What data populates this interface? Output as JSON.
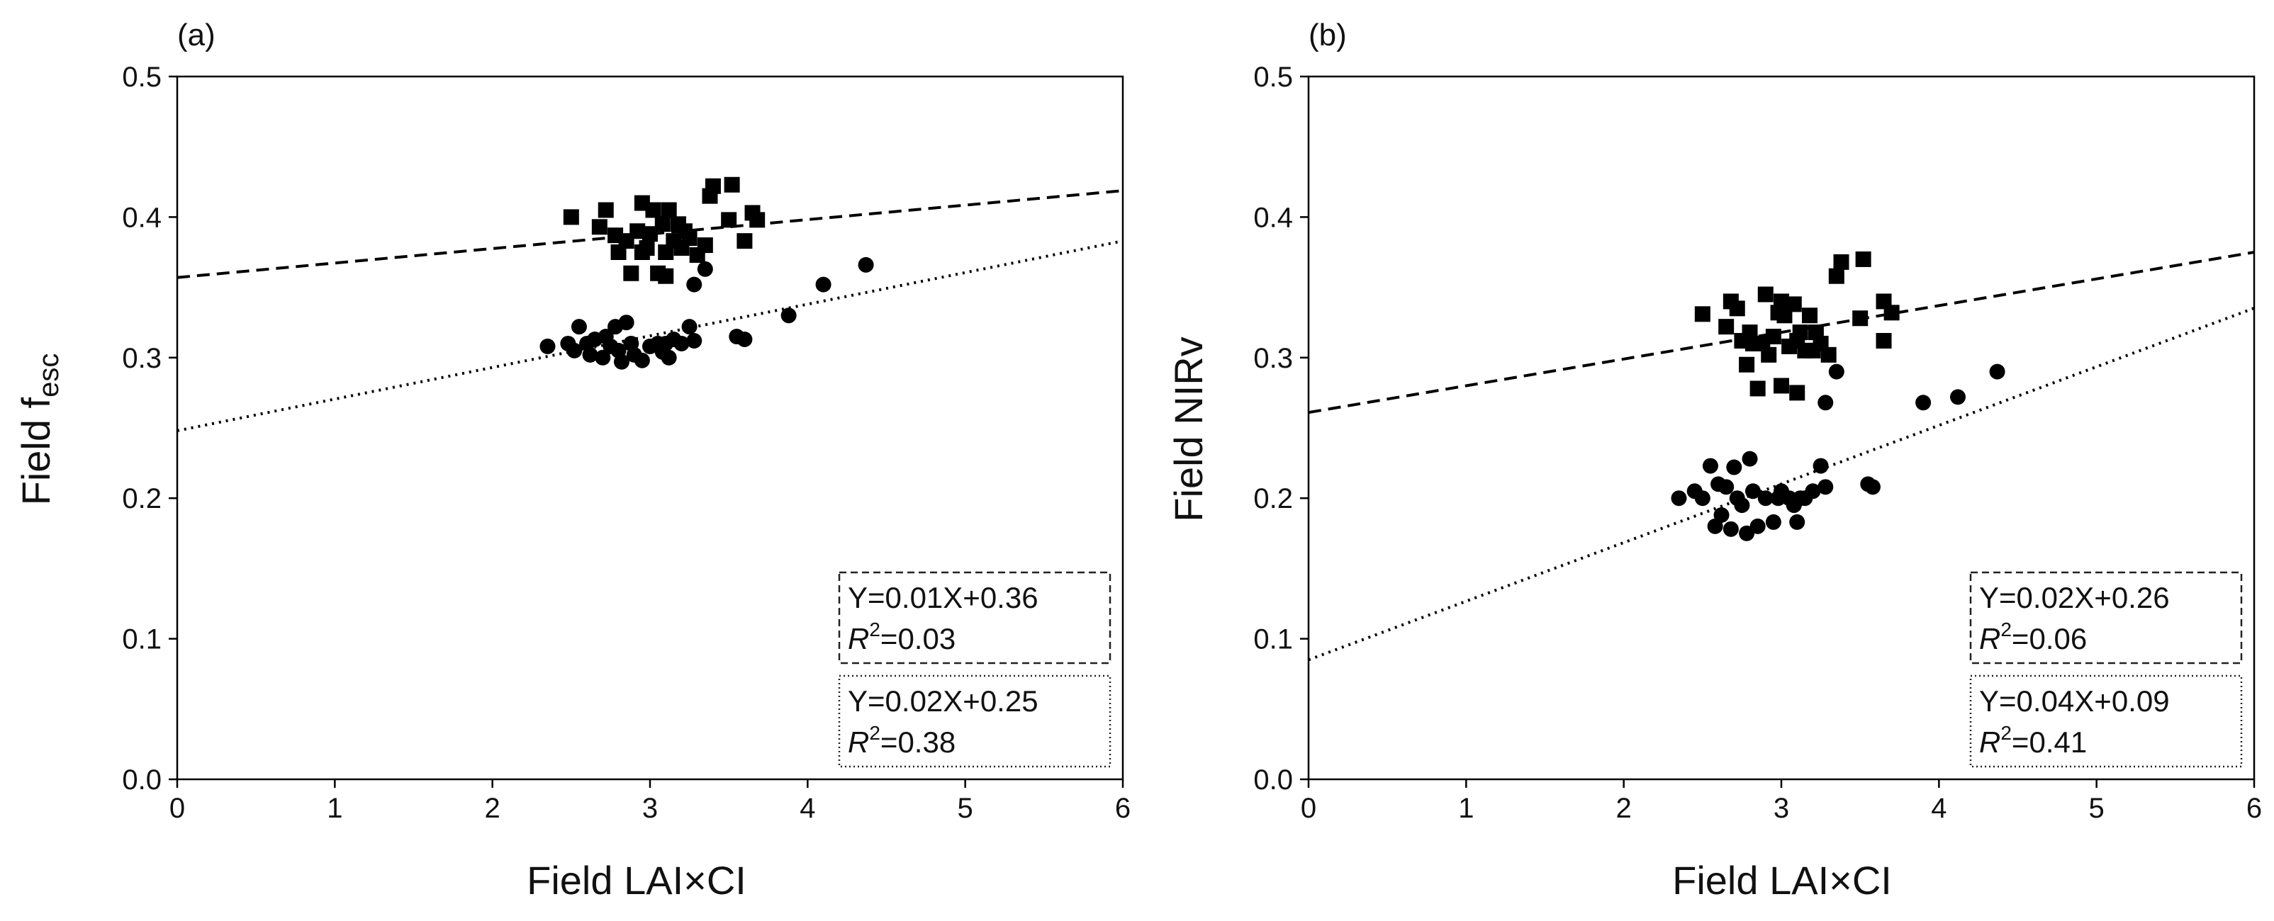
{
  "chart_data": [
    {
      "type": "scatter",
      "panel_label": "(a)",
      "xlabel": "Field LAI×CI",
      "ylabel": "Field f",
      "ylabel_sub": "esc",
      "xlim": [
        0,
        6
      ],
      "ylim": [
        0.0,
        0.5
      ],
      "xticks": [
        "0",
        "1",
        "2",
        "3",
        "4",
        "5",
        "6"
      ],
      "yticks": [
        "0.0",
        "0.1",
        "0.2",
        "0.3",
        "0.4",
        "0.5"
      ],
      "series": [
        {
          "name": "squares",
          "marker": "square",
          "points": [
            [
              2.5,
              0.4
            ],
            [
              2.68,
              0.393
            ],
            [
              2.72,
              0.405
            ],
            [
              2.78,
              0.387
            ],
            [
              2.8,
              0.375
            ],
            [
              2.85,
              0.383
            ],
            [
              2.88,
              0.36
            ],
            [
              2.92,
              0.39
            ],
            [
              2.95,
              0.41
            ],
            [
              2.98,
              0.378
            ],
            [
              3.0,
              0.388
            ],
            [
              3.02,
              0.405
            ],
            [
              3.05,
              0.36
            ],
            [
              3.08,
              0.395
            ],
            [
              3.1,
              0.375
            ],
            [
              3.12,
              0.405
            ],
            [
              3.15,
              0.383
            ],
            [
              3.18,
              0.395
            ],
            [
              3.2,
              0.378
            ],
            [
              3.22,
              0.39
            ],
            [
              3.25,
              0.385
            ],
            [
              3.3,
              0.373
            ],
            [
              3.35,
              0.38
            ],
            [
              3.38,
              0.415
            ],
            [
              3.4,
              0.422
            ],
            [
              3.5,
              0.398
            ],
            [
              3.52,
              0.423
            ],
            [
              3.6,
              0.383
            ],
            [
              3.65,
              0.403
            ],
            [
              3.68,
              0.398
            ],
            [
              3.1,
              0.358
            ],
            [
              2.95,
              0.375
            ]
          ]
        },
        {
          "name": "circles",
          "marker": "circle",
          "points": [
            [
              2.35,
              0.308
            ],
            [
              2.48,
              0.31
            ],
            [
              2.52,
              0.305
            ],
            [
              2.55,
              0.322
            ],
            [
              2.6,
              0.31
            ],
            [
              2.62,
              0.302
            ],
            [
              2.65,
              0.313
            ],
            [
              2.7,
              0.3
            ],
            [
              2.72,
              0.315
            ],
            [
              2.75,
              0.308
            ],
            [
              2.78,
              0.322
            ],
            [
              2.8,
              0.305
            ],
            [
              2.82,
              0.297
            ],
            [
              2.85,
              0.325
            ],
            [
              2.88,
              0.31
            ],
            [
              2.9,
              0.302
            ],
            [
              2.95,
              0.298
            ],
            [
              3.0,
              0.308
            ],
            [
              3.05,
              0.31
            ],
            [
              3.08,
              0.304
            ],
            [
              3.1,
              0.31
            ],
            [
              3.12,
              0.3
            ],
            [
              3.15,
              0.313
            ],
            [
              3.2,
              0.31
            ],
            [
              3.25,
              0.322
            ],
            [
              3.28,
              0.312
            ],
            [
              3.28,
              0.352
            ],
            [
              3.35,
              0.363
            ],
            [
              3.55,
              0.315
            ],
            [
              3.6,
              0.313
            ],
            [
              3.88,
              0.33
            ],
            [
              4.1,
              0.352
            ],
            [
              4.37,
              0.366
            ]
          ]
        }
      ],
      "fits": [
        {
          "style": "dashed",
          "slope": 0.0103,
          "intercept": 0.357,
          "equation": "Y=0.01X+0.36",
          "r2_label": "R",
          "r2_sup": "2",
          "r2_value": "=0.03"
        },
        {
          "style": "dotted",
          "slope": 0.0225,
          "intercept": 0.248,
          "equation": "Y=0.02X+0.25",
          "r2_label": "R",
          "r2_sup": "2",
          "r2_value": "=0.38"
        }
      ]
    },
    {
      "type": "scatter",
      "panel_label": "(b)",
      "xlabel": "Field LAI×CI",
      "ylabel": "Field NIRv",
      "ylabel_sub": "",
      "xlim": [
        0,
        6
      ],
      "ylim": [
        0.0,
        0.5
      ],
      "xticks": [
        "0",
        "1",
        "2",
        "3",
        "4",
        "5",
        "6"
      ],
      "yticks": [
        "0.0",
        "0.1",
        "0.2",
        "0.3",
        "0.4",
        "0.5"
      ],
      "series": [
        {
          "name": "squares",
          "marker": "square",
          "points": [
            [
              2.5,
              0.331
            ],
            [
              2.65,
              0.322
            ],
            [
              2.68,
              0.34
            ],
            [
              2.72,
              0.335
            ],
            [
              2.75,
              0.312
            ],
            [
              2.78,
              0.295
            ],
            [
              2.8,
              0.318
            ],
            [
              2.82,
              0.31
            ],
            [
              2.85,
              0.278
            ],
            [
              2.88,
              0.31
            ],
            [
              2.9,
              0.345
            ],
            [
              2.92,
              0.302
            ],
            [
              2.95,
              0.315
            ],
            [
              2.98,
              0.332
            ],
            [
              3.0,
              0.34
            ],
            [
              3.02,
              0.33
            ],
            [
              3.05,
              0.308
            ],
            [
              3.08,
              0.338
            ],
            [
              3.1,
              0.312
            ],
            [
              3.12,
              0.318
            ],
            [
              3.15,
              0.305
            ],
            [
              3.18,
              0.33
            ],
            [
              3.2,
              0.305
            ],
            [
              3.22,
              0.318
            ],
            [
              3.25,
              0.31
            ],
            [
              3.3,
              0.302
            ],
            [
              3.35,
              0.358
            ],
            [
              3.38,
              0.368
            ],
            [
              3.5,
              0.328
            ],
            [
              3.52,
              0.37
            ],
            [
              3.65,
              0.312
            ],
            [
              3.65,
              0.34
            ],
            [
              3.7,
              0.332
            ],
            [
              3.0,
              0.28
            ],
            [
              3.1,
              0.275
            ]
          ]
        },
        {
          "name": "circles",
          "marker": "circle",
          "points": [
            [
              2.35,
              0.2
            ],
            [
              2.45,
              0.205
            ],
            [
              2.5,
              0.2
            ],
            [
              2.55,
              0.223
            ],
            [
              2.58,
              0.18
            ],
            [
              2.6,
              0.21
            ],
            [
              2.62,
              0.188
            ],
            [
              2.65,
              0.208
            ],
            [
              2.68,
              0.178
            ],
            [
              2.7,
              0.222
            ],
            [
              2.72,
              0.2
            ],
            [
              2.75,
              0.195
            ],
            [
              2.78,
              0.175
            ],
            [
              2.8,
              0.228
            ],
            [
              2.82,
              0.205
            ],
            [
              2.85,
              0.18
            ],
            [
              2.9,
              0.2
            ],
            [
              2.95,
              0.183
            ],
            [
              2.98,
              0.2
            ],
            [
              3.0,
              0.205
            ],
            [
              3.05,
              0.2
            ],
            [
              3.08,
              0.195
            ],
            [
              3.1,
              0.183
            ],
            [
              3.12,
              0.2
            ],
            [
              3.15,
              0.2
            ],
            [
              3.2,
              0.205
            ],
            [
              3.25,
              0.223
            ],
            [
              3.28,
              0.208
            ],
            [
              3.28,
              0.268
            ],
            [
              3.35,
              0.29
            ],
            [
              3.55,
              0.21
            ],
            [
              3.58,
              0.208
            ],
            [
              3.9,
              0.268
            ],
            [
              4.12,
              0.272
            ],
            [
              4.37,
              0.29
            ]
          ]
        }
      ],
      "fits": [
        {
          "style": "dashed",
          "slope": 0.019,
          "intercept": 0.261,
          "equation": "Y=0.02X+0.26",
          "r2_label": "R",
          "r2_sup": "2",
          "r2_value": "=0.06"
        },
        {
          "style": "dotted",
          "slope": 0.0417,
          "intercept": 0.085,
          "equation": "Y=0.04X+0.09",
          "r2_label": "R",
          "r2_sup": "2",
          "r2_value": "=0.41"
        }
      ]
    }
  ]
}
